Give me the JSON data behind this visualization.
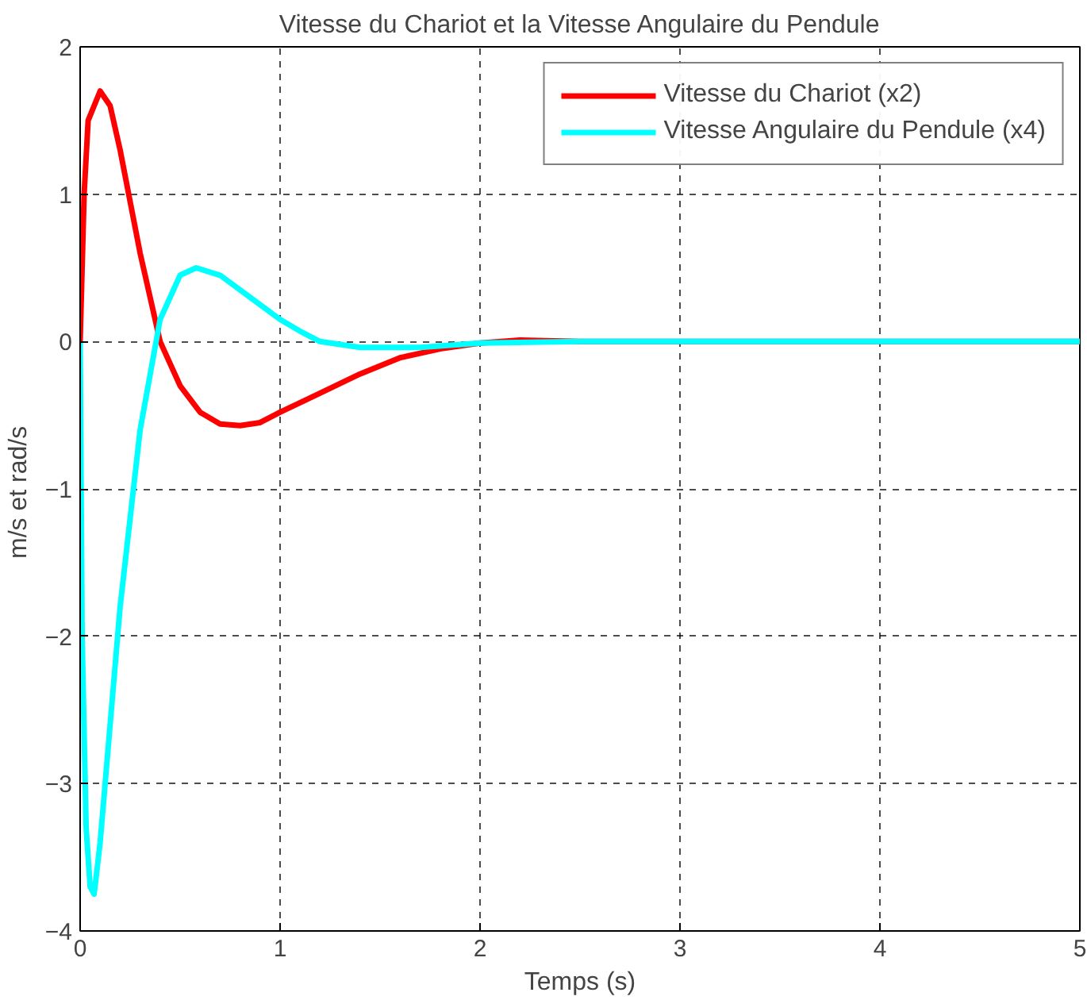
{
  "chart_data": {
    "type": "line",
    "title": "Vitesse du Chariot et la Vitesse Angulaire du Pendule",
    "xlabel": "Temps (s)",
    "ylabel": "m/s  et rad/s",
    "xlim": [
      0,
      5
    ],
    "ylim": [
      -4,
      2
    ],
    "xticks": [
      0,
      1,
      2,
      3,
      4,
      5
    ],
    "yticks": [
      -4,
      -3,
      -2,
      -1,
      0,
      1,
      2
    ],
    "grid": true,
    "legend": "top right",
    "line_style": "solid",
    "marker": "none",
    "series": [
      {
        "name": "Vitesse du Chariot (x2)",
        "color": "#ff0000",
        "x": [
          0,
          0.02,
          0.04,
          0.1,
          0.15,
          0.2,
          0.3,
          0.4,
          0.5,
          0.6,
          0.7,
          0.8,
          0.9,
          1.0,
          1.2,
          1.4,
          1.6,
          1.8,
          2.0,
          2.2,
          2.5,
          5
        ],
        "values": [
          0,
          1.0,
          1.5,
          1.7,
          1.6,
          1.3,
          0.6,
          0.0,
          -0.3,
          -0.48,
          -0.56,
          -0.57,
          -0.55,
          -0.48,
          -0.35,
          -0.22,
          -0.11,
          -0.05,
          -0.01,
          0.01,
          0,
          0
        ]
      },
      {
        "name": "Vitesse Angulaire du Pendule (x4)",
        "color": "#00ffff",
        "x": [
          0,
          0.01,
          0.03,
          0.05,
          0.07,
          0.1,
          0.15,
          0.2,
          0.3,
          0.4,
          0.5,
          0.58,
          0.7,
          0.85,
          1.0,
          1.1,
          1.2,
          1.4,
          1.7,
          2.0,
          2.5,
          5
        ],
        "values": [
          0,
          -2,
          -3.3,
          -3.7,
          -3.75,
          -3.4,
          -2.6,
          -1.8,
          -0.6,
          0.15,
          0.45,
          0.5,
          0.45,
          0.3,
          0.15,
          0.07,
          0.0,
          -0.04,
          -0.04,
          -0.01,
          0,
          0
        ]
      }
    ]
  }
}
